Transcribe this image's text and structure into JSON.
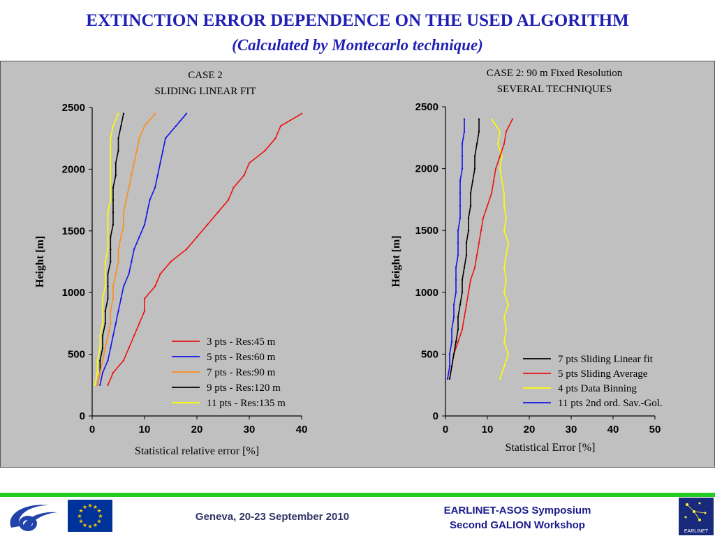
{
  "slide": {
    "title": "EXTINCTION ERROR DEPENDENCE ON THE USED ALGORITHM",
    "subtitle": "(Calculated by Montecarlo technique)"
  },
  "footer": {
    "venue": "Geneva, 20-23 September 2010",
    "symposium_line1": "EARLINET-ASOS Symposium",
    "symposium_line2": "Second GALION Workshop",
    "earlinet_logo_text": "EARLINET"
  },
  "colors": {
    "title": "#1f1fb4",
    "panel": "#c0c0c0",
    "footer_rule": "#22cc22",
    "red": "#ee1111",
    "blue": "#1111ee",
    "orange": "#ff8c1a",
    "black": "#000000",
    "yellow": "#ffff00"
  },
  "chart_data": [
    {
      "type": "line",
      "title": "CASE 2",
      "subtitle": "SLIDING LINEAR FIT",
      "xlabel": "Statistical relative error [%]",
      "ylabel": "Height [m]",
      "xlim": [
        0,
        40
      ],
      "ylim": [
        0,
        2500
      ],
      "xticks": [
        0,
        10,
        20,
        30,
        40
      ],
      "yticks": [
        0,
        500,
        1000,
        1500,
        2000,
        2500
      ],
      "legend_position": "bottom-right",
      "heights": [
        250,
        350,
        450,
        550,
        650,
        750,
        850,
        950,
        1050,
        1150,
        1250,
        1350,
        1450,
        1550,
        1650,
        1750,
        1850,
        1950,
        2050,
        2150,
        2250,
        2350,
        2450
      ],
      "series": [
        {
          "name": "3 pts - Res:45 m",
          "color": "#ee1111",
          "values": [
            3,
            4,
            6,
            7,
            8,
            9,
            10,
            10,
            12,
            13,
            15,
            18,
            20,
            22,
            24,
            26,
            27,
            29,
            30,
            33,
            35,
            36,
            40
          ]
        },
        {
          "name": "5 pts - Res:60 m",
          "color": "#1111ee",
          "values": [
            1.5,
            2,
            3,
            3.5,
            4,
            4.5,
            5,
            5.5,
            6,
            7,
            7.5,
            8,
            9,
            10,
            10.5,
            11,
            12,
            12.5,
            13,
            13.5,
            14,
            16,
            18
          ]
        },
        {
          "name": "7 pts - Res:90 m",
          "color": "#ff8c1a",
          "values": [
            1,
            1.5,
            2,
            2.5,
            3,
            3.5,
            3.5,
            4,
            4,
            4.5,
            5,
            5,
            5.5,
            6,
            6,
            6.5,
            7,
            7.5,
            8,
            8.5,
            9,
            10,
            12
          ]
        },
        {
          "name": "9 pts - Res:120 m",
          "color": "#000000",
          "values": [
            1,
            1.5,
            1.5,
            2,
            2,
            2.5,
            2.5,
            3,
            3,
            3,
            3.5,
            3.5,
            3.5,
            4,
            4,
            4,
            4,
            4.5,
            4.5,
            5,
            5,
            5.5,
            6
          ]
        },
        {
          "name": "11 pts - Res:135 m",
          "color": "#ffff00",
          "values": [
            0.5,
            1,
            1,
            1.5,
            1.5,
            2,
            2,
            2,
            2.5,
            2.5,
            2.5,
            3,
            3,
            3,
            3,
            3.5,
            3.5,
            3.5,
            3.5,
            3.5,
            3.5,
            4,
            5
          ]
        }
      ]
    },
    {
      "type": "line",
      "title": "CASE 2: 90 m Fixed Resolution",
      "subtitle": "SEVERAL TECHNIQUES",
      "xlabel": "Statistical Error [%]",
      "ylabel": "Height [m]",
      "xlim": [
        0,
        50
      ],
      "ylim": [
        0,
        2500
      ],
      "xticks": [
        0,
        10,
        20,
        30,
        40,
        50
      ],
      "yticks": [
        0,
        500,
        1000,
        1500,
        2000,
        2500
      ],
      "legend_position": "bottom-right",
      "heights": [
        300,
        400,
        500,
        600,
        700,
        800,
        900,
        1000,
        1100,
        1200,
        1300,
        1400,
        1500,
        1600,
        1700,
        1800,
        1900,
        2000,
        2100,
        2200,
        2300,
        2400
      ],
      "series": [
        {
          "name": "7 pts Sliding Linear fit",
          "color": "#000000",
          "values": [
            1,
            1.5,
            2,
            2.5,
            3,
            3,
            3.5,
            4,
            4,
            4.5,
            5,
            5,
            5.5,
            5.5,
            6,
            6,
            6.5,
            7,
            7,
            7.5,
            8,
            8
          ]
        },
        {
          "name": "5 pts Sliding Average",
          "color": "#ee1111",
          "values": [
            1,
            1.5,
            2,
            3,
            4,
            4.5,
            5,
            5.5,
            6,
            7,
            7.5,
            8,
            8.5,
            9,
            10,
            11,
            11.5,
            12,
            13,
            14,
            14.5,
            16
          ]
        },
        {
          "name": "4 pts Data Binning",
          "color": "#ffff00",
          "values": [
            13,
            14,
            15,
            14,
            14.5,
            14,
            15,
            14,
            14.5,
            14,
            14.5,
            15,
            14,
            14.5,
            14,
            14,
            13.5,
            13,
            13.5,
            12.5,
            13,
            11
          ]
        },
        {
          "name": "11 pts 2nd ord. Sav.-Gol.",
          "color": "#1111ee",
          "values": [
            0.5,
            1,
            1,
            1.5,
            1.5,
            2,
            2,
            2.5,
            2.5,
            2.5,
            3,
            3,
            3,
            3.5,
            3.5,
            3.5,
            3.5,
            4,
            4,
            4,
            4.5,
            4.5
          ]
        }
      ]
    }
  ]
}
